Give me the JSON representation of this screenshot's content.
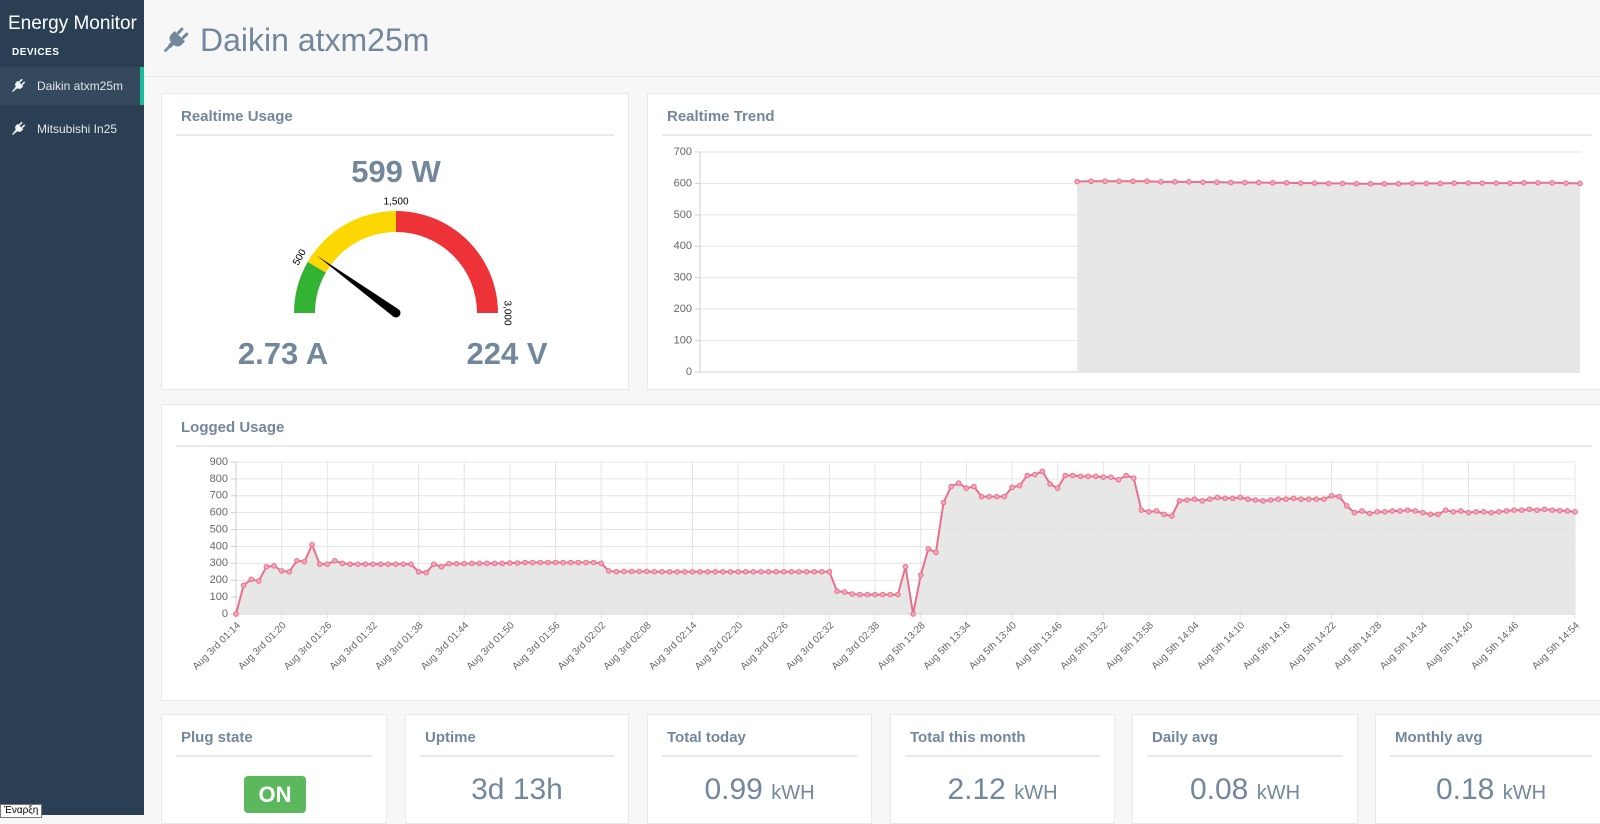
{
  "sidebar": {
    "title": "Energy Monitor",
    "section": "DEVICES",
    "devices": [
      "Daikin atxm25m",
      "Mitsubishi In25"
    ]
  },
  "header": {
    "title": "Daikin atxm25m"
  },
  "chart_data": [
    {
      "type": "gauge",
      "title": "Realtime Usage",
      "value": 599,
      "value_label": "599 W",
      "current": "2.73 A",
      "voltage": "224 V",
      "range": [
        0,
        3000
      ],
      "ticks": [
        500,
        {
          "value": 1500,
          "label": "1,500"
        },
        {
          "value": 3000,
          "label": "3,000"
        }
      ],
      "colors": [
        "#34b233",
        "#fcd700",
        "#ee3338"
      ],
      "needle_color": "#000000"
    },
    {
      "type": "area",
      "title": "Realtime Trend",
      "values": [
        null,
        null,
        null,
        null,
        null,
        null,
        null,
        null,
        null,
        null,
        null,
        null,
        null,
        null,
        null,
        null,
        null,
        null,
        null,
        null,
        null,
        null,
        null,
        null,
        null,
        null,
        null,
        606,
        607,
        607,
        607,
        607,
        607,
        605,
        605,
        605,
        604,
        604,
        603,
        603,
        603,
        602,
        602,
        601,
        601,
        600,
        600,
        599,
        599,
        599,
        599,
        600,
        600,
        600,
        601,
        601,
        601,
        601,
        601,
        602,
        602,
        602,
        601,
        600
      ],
      "color": "#e8708a",
      "fill": "#e4e4e4",
      "ylim": [
        0,
        700
      ],
      "yticks": [
        0,
        100,
        200,
        300,
        400,
        500,
        600,
        700
      ],
      "grid": true
    },
    {
      "type": "area",
      "title": "Logged Usage",
      "categories": [
        "Aug 3rd 01:14",
        null,
        null,
        null,
        null,
        null,
        "Aug 3rd 01:20",
        null,
        null,
        null,
        null,
        null,
        "Aug 3rd 01:26",
        null,
        null,
        null,
        null,
        null,
        "Aug 3rd 01:32",
        null,
        null,
        null,
        null,
        null,
        "Aug 3rd 01:38",
        null,
        null,
        null,
        null,
        null,
        "Aug 3rd 01:44",
        null,
        null,
        null,
        null,
        null,
        "Aug 3rd 01:50",
        null,
        null,
        null,
        null,
        null,
        "Aug 3rd 01:56",
        null,
        null,
        null,
        null,
        null,
        "Aug 3rd 02:02",
        null,
        null,
        null,
        null,
        null,
        "Aug 3rd 02:08",
        null,
        null,
        null,
        null,
        null,
        "Aug 3rd 02:14",
        null,
        null,
        null,
        null,
        null,
        "Aug 3rd 02:20",
        null,
        null,
        null,
        null,
        null,
        "Aug 3rd 02:26",
        null,
        null,
        null,
        null,
        null,
        "Aug 3rd 02:32",
        null,
        null,
        null,
        null,
        null,
        "Aug 3rd 02:38",
        null,
        null,
        null,
        null,
        null,
        "Aug 5th 13:28",
        null,
        null,
        null,
        null,
        null,
        "Aug 5th 13:34",
        null,
        null,
        null,
        null,
        null,
        "Aug 5th 13:40",
        null,
        null,
        null,
        null,
        null,
        "Aug 5th 13:46",
        null,
        null,
        null,
        null,
        null,
        "Aug 5th 13:52",
        null,
        null,
        null,
        null,
        null,
        "Aug 5th 13:58",
        null,
        null,
        null,
        null,
        null,
        "Aug 5th 14:04",
        null,
        null,
        null,
        null,
        null,
        "Aug 5th 14:10",
        null,
        null,
        null,
        null,
        null,
        "Aug 5th 14:16",
        null,
        null,
        null,
        null,
        null,
        "Aug 5th 14:22",
        null,
        null,
        null,
        null,
        null,
        "Aug 5th 14:28",
        null,
        null,
        null,
        null,
        null,
        "Aug 5th 14:34",
        null,
        null,
        null,
        null,
        null,
        "Aug 5th 14:40",
        null,
        null,
        null,
        null,
        null,
        "Aug 5th 14:46",
        null,
        null,
        null,
        null,
        null,
        null,
        null,
        "Aug 5th 14:54"
      ],
      "values": [
        0,
        170,
        205,
        195,
        280,
        285,
        255,
        250,
        315,
        310,
        410,
        295,
        295,
        315,
        300,
        295,
        295,
        295,
        295,
        295,
        295,
        295,
        295,
        295,
        250,
        245,
        295,
        280,
        298,
        298,
        298,
        300,
        300,
        300,
        300,
        300,
        302,
        302,
        305,
        305,
        305,
        305,
        305,
        305,
        305,
        305,
        305,
        305,
        300,
        255,
        250,
        252,
        252,
        252,
        252,
        250,
        250,
        250,
        250,
        250,
        250,
        250,
        250,
        250,
        250,
        250,
        250,
        250,
        250,
        250,
        250,
        250,
        250,
        250,
        250,
        250,
        250,
        250,
        250,
        135,
        130,
        118,
        115,
        115,
        115,
        115,
        115,
        115,
        280,
        0,
        230,
        385,
        365,
        660,
        755,
        775,
        745,
        755,
        695,
        695,
        695,
        695,
        750,
        760,
        820,
        825,
        845,
        770,
        745,
        820,
        820,
        815,
        815,
        815,
        810,
        810,
        795,
        820,
        805,
        615,
        605,
        610,
        590,
        580,
        670,
        675,
        680,
        670,
        680,
        690,
        685,
        685,
        690,
        680,
        675,
        670,
        675,
        680,
        680,
        685,
        680,
        680,
        680,
        680,
        700,
        695,
        640,
        600,
        610,
        595,
        605,
        605,
        610,
        610,
        615,
        610,
        600,
        590,
        590,
        615,
        605,
        610,
        600,
        605,
        605,
        600,
        605,
        610,
        615,
        615,
        620,
        615,
        620,
        615,
        612,
        610,
        605
      ],
      "color": "#e8708a",
      "fill": "#e4e4e4",
      "ylim": [
        0,
        900
      ],
      "yticks": [
        0,
        100,
        200,
        300,
        400,
        500,
        600,
        700,
        800,
        900
      ],
      "grid": true
    }
  ],
  "cards": [
    {
      "title": "Plug state",
      "value": "ON"
    },
    {
      "title": "Uptime",
      "value": "3d 13h"
    },
    {
      "title": "Total today",
      "value": "0.99",
      "unit": "kWH"
    },
    {
      "title": "Total this month",
      "value": "2.12",
      "unit": "kWH"
    },
    {
      "title": "Daily avg",
      "value": "0.08",
      "unit": "kWH"
    },
    {
      "title": "Monthly avg",
      "value": "0.18",
      "unit": "kWH"
    }
  ],
  "tooltip": "Έναρξη"
}
